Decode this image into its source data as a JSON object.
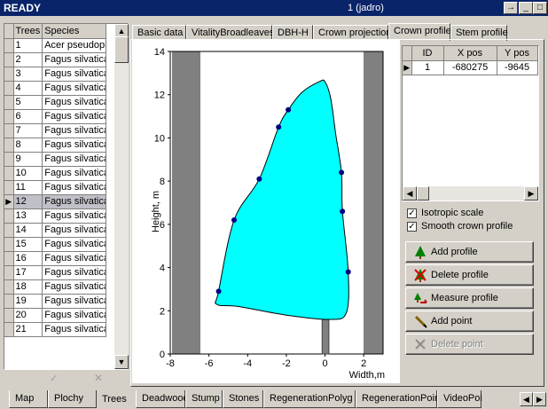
{
  "titlebar": {
    "status": "READY",
    "center": "1 (jadro)",
    "buttons": [
      "→",
      "_",
      "□"
    ]
  },
  "trees_grid": {
    "headers": [
      "Trees",
      "Species"
    ],
    "rows": [
      {
        "num": "1",
        "species": "Acer pseudoplatanus"
      },
      {
        "num": "2",
        "species": "Fagus silvatica"
      },
      {
        "num": "3",
        "species": "Fagus silvatica"
      },
      {
        "num": "4",
        "species": "Fagus silvatica"
      },
      {
        "num": "5",
        "species": "Fagus silvatica"
      },
      {
        "num": "6",
        "species": "Fagus silvatica"
      },
      {
        "num": "7",
        "species": "Fagus silvatica"
      },
      {
        "num": "8",
        "species": "Fagus silvatica"
      },
      {
        "num": "9",
        "species": "Fagus silvatica"
      },
      {
        "num": "10",
        "species": "Fagus silvatica"
      },
      {
        "num": "11",
        "species": "Fagus silvatica"
      },
      {
        "num": "12",
        "species": "Fagus silvatica"
      },
      {
        "num": "13",
        "species": "Fagus silvatica"
      },
      {
        "num": "14",
        "species": "Fagus silvatica"
      },
      {
        "num": "15",
        "species": "Fagus silvatica"
      },
      {
        "num": "16",
        "species": "Fagus silvatica"
      },
      {
        "num": "17",
        "species": "Fagus silvatica"
      },
      {
        "num": "18",
        "species": "Fagus silvatica"
      },
      {
        "num": "19",
        "species": "Fagus silvatica"
      },
      {
        "num": "20",
        "species": "Fagus silvatica"
      },
      {
        "num": "21",
        "species": "Fagus silvatica"
      }
    ],
    "selected_row": "12"
  },
  "top_tabs": [
    "Basic data",
    "VitalityBroadleaves",
    "DBH-H",
    "Crown projection",
    "Crown profile",
    "Stem profile"
  ],
  "active_top_tab": "Crown profile",
  "profile_grid": {
    "headers": [
      "ID",
      "X pos",
      "Y pos"
    ],
    "row": {
      "id": "1",
      "x": "-680275",
      "y": "-9645"
    }
  },
  "options": {
    "isotropic": {
      "label": "Isotropic scale",
      "checked": true
    },
    "smooth": {
      "label": "Smooth crown profile",
      "checked": true
    }
  },
  "buttons": {
    "add_profile": "Add profile",
    "delete_profile": "Delete profile",
    "measure_profile": "Measure profile",
    "add_point": "Add point",
    "delete_point": "Delete point"
  },
  "bottom_tabs": [
    "Map",
    "Plochy",
    "Trees",
    "Deadwood",
    "Stump",
    "Stones",
    "RegenerationPolyg",
    "RegenerationPoint",
    "VideoPoi"
  ],
  "active_bottom_tab": "Trees",
  "colors": {
    "crown_fill": "#00ffff",
    "points": "#000080",
    "bars": "#808080",
    "titlebar": "#0a246a"
  },
  "chart_data": {
    "type": "area",
    "xlabel": "Width,m",
    "ylabel": "Height, m",
    "xlim": [
      -8,
      3
    ],
    "ylim": [
      0,
      14
    ],
    "x_ticks": [
      -8,
      -6,
      -4,
      -2,
      0,
      2
    ],
    "y_ticks": [
      0,
      2,
      4,
      6,
      8,
      10,
      12,
      14
    ],
    "crown_points": [
      {
        "x": -5.5,
        "y": 2.9
      },
      {
        "x": -4.7,
        "y": 6.2
      },
      {
        "x": -3.4,
        "y": 8.1
      },
      {
        "x": -2.4,
        "y": 10.5
      },
      {
        "x": -1.9,
        "y": 11.3
      },
      {
        "x": 0.85,
        "y": 8.4
      },
      {
        "x": 0.9,
        "y": 6.6
      },
      {
        "x": 1.2,
        "y": 3.8
      }
    ],
    "crown_outline": [
      [
        -5.6,
        2.3
      ],
      [
        -5.5,
        2.9
      ],
      [
        -4.7,
        6.2
      ],
      [
        -3.4,
        8.1
      ],
      [
        -2.4,
        10.5
      ],
      [
        -1.9,
        11.3
      ],
      [
        -1.2,
        12.1
      ],
      [
        -0.3,
        12.6
      ],
      [
        0.0,
        12.6
      ],
      [
        0.3,
        11.8
      ],
      [
        0.55,
        10.2
      ],
      [
        0.85,
        8.4
      ],
      [
        0.9,
        6.6
      ],
      [
        1.2,
        3.8
      ],
      [
        1.1,
        1.9
      ],
      [
        0.2,
        1.6
      ],
      [
        -2.0,
        1.8
      ],
      [
        -4.5,
        2.2
      ]
    ],
    "stem": {
      "x_left": -0.15,
      "x_right": 0.2,
      "y_bottom": 0,
      "y_top": 1.6
    }
  }
}
